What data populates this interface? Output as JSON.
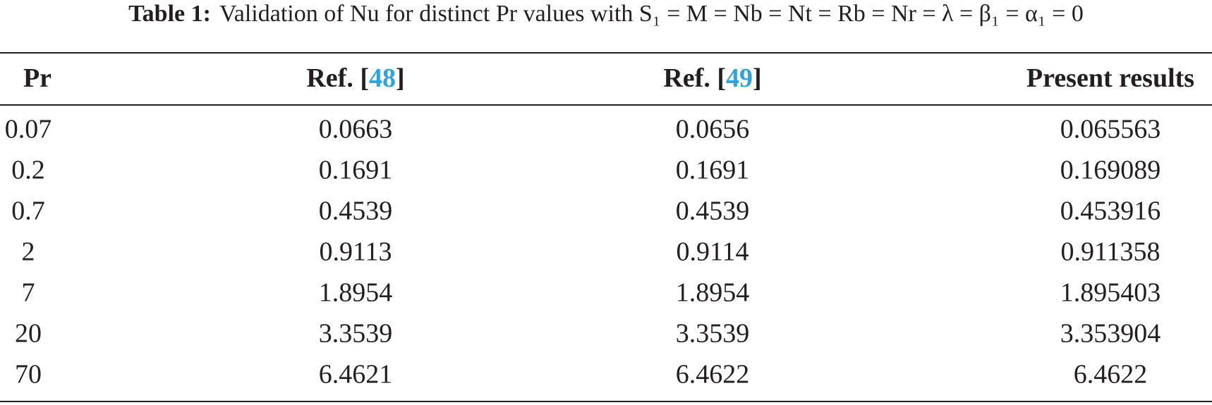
{
  "caption": {
    "label": "Table 1:",
    "text": "Validation of Nu for distinct Pr values with S₁ = M = Nb = Nt = Rb = Nr = λ = β₁ = α₁ = 0"
  },
  "table": {
    "headers": [
      {
        "pre": "Pr"
      },
      {
        "pre": "Ref. [",
        "ref": "48",
        "post": "]"
      },
      {
        "pre": "Ref. [",
        "ref": "49",
        "post": "]"
      },
      {
        "pre": "Present results"
      }
    ],
    "rows": [
      [
        "0.07",
        "0.0663",
        "0.0656",
        "0.065563"
      ],
      [
        "0.2",
        "0.1691",
        "0.1691",
        "0.169089"
      ],
      [
        "0.7",
        "0.4539",
        "0.4539",
        "0.453916"
      ],
      [
        "2",
        "0.9113",
        "0.9114",
        "0.911358"
      ],
      [
        "7",
        "1.8954",
        "1.8954",
        "1.895403"
      ],
      [
        "20",
        "3.3539",
        "3.3539",
        "3.353904"
      ],
      [
        "70",
        "6.4621",
        "6.4622",
        "6.4622"
      ]
    ]
  }
}
